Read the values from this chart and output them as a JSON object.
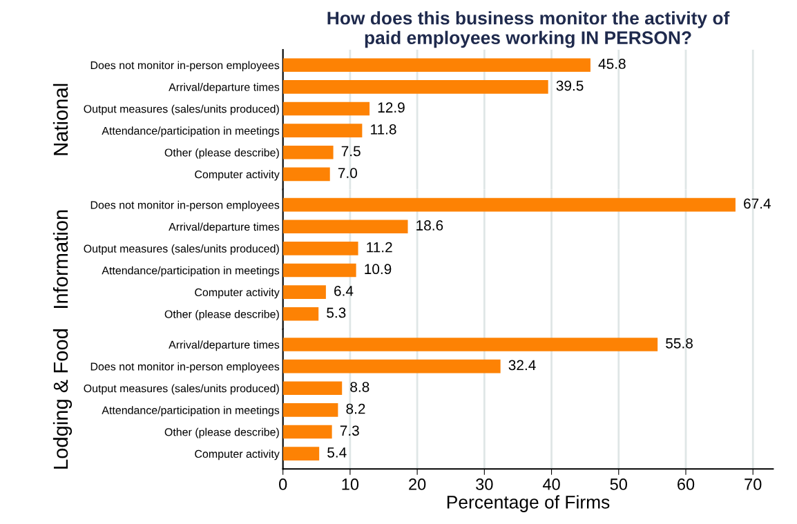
{
  "chart_data": [
    {
      "type": "bar",
      "orientation": "horizontal",
      "title": "How does this business monitor the activity of\npaid employees working IN PERSON?",
      "ylabel": "National",
      "categories": [
        "Does not monitor in-person employees",
        "Arrival/departure times",
        "Output measures (sales/units produced)",
        "Attendance/participation in meetings",
        "Other (please describe)",
        "Computer activity"
      ],
      "values": [
        45.8,
        39.5,
        12.9,
        11.8,
        7.5,
        7.0
      ],
      "color": "#fd8204",
      "data_labels": true,
      "value_labels": [
        "45.8",
        "39.5",
        "12.9",
        "11.8",
        "7.5",
        "7.0"
      ],
      "xlim": [
        0,
        73
      ],
      "xticks": [
        0,
        10,
        20,
        30,
        40,
        50,
        60,
        70
      ],
      "grid": "x",
      "tick_labels": "y"
    },
    {
      "type": "bar",
      "orientation": "horizontal",
      "ylabel": "Information",
      "categories": [
        "Does not monitor in-person employees",
        "Arrival/departure times",
        "Output measures (sales/units produced)",
        "Attendance/participation in meetings",
        "Computer activity",
        "Other (please describe)"
      ],
      "values": [
        67.4,
        18.6,
        11.2,
        10.9,
        6.4,
        5.3
      ],
      "color": "#fd8204",
      "data_labels": true,
      "value_labels": [
        "67.4",
        "18.6",
        "11.2",
        "10.9",
        "6.4",
        "5.3"
      ],
      "xlim": [
        0,
        73
      ],
      "xticks": [
        0,
        10,
        20,
        30,
        40,
        50,
        60,
        70
      ],
      "grid": "x",
      "tick_labels": "y"
    },
    {
      "type": "bar",
      "orientation": "horizontal",
      "ylabel": "Lodging & Food",
      "xlabel": "Percentage of Firms",
      "categories": [
        "Arrival/departure times",
        "Does not monitor in-person employees",
        "Output measures (sales/units produced)",
        "Attendance/participation in meetings",
        "Other (please describe)",
        "Computer activity"
      ],
      "values": [
        55.8,
        32.4,
        8.8,
        8.2,
        7.3,
        5.4
      ],
      "color": "#fd8204",
      "data_labels": true,
      "value_labels": [
        "55.8",
        "32.4",
        "8.8",
        "8.2",
        "7.3",
        "5.4"
      ],
      "xlim": [
        0,
        73
      ],
      "xticks": [
        0,
        10,
        20,
        30,
        40,
        50,
        60,
        70
      ],
      "grid": "x"
    }
  ]
}
